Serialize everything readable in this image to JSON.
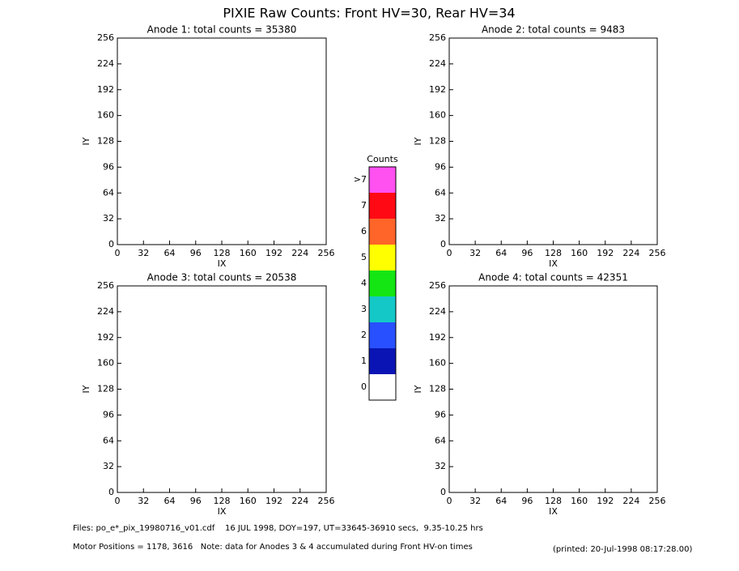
{
  "header": {
    "title": "PIXIE Raw Counts:  Front HV=30, Rear HV=34"
  },
  "chart_data": [
    {
      "type": "heatmap",
      "title": "Anode 1: total counts = 35380",
      "xlabel": "IX",
      "ylabel": "IY",
      "xlim": [
        0,
        256
      ],
      "ylim": [
        0,
        256
      ],
      "xticks": [
        0,
        32,
        64,
        96,
        128,
        160,
        192,
        224,
        256
      ],
      "yticks": [
        0,
        32,
        64,
        96,
        128,
        160,
        192,
        224,
        256
      ]
    },
    {
      "type": "heatmap",
      "title": "Anode 2: total counts = 9483",
      "xlabel": "IX",
      "ylabel": "IY",
      "xlim": [
        0,
        256
      ],
      "ylim": [
        0,
        256
      ],
      "xticks": [
        0,
        32,
        64,
        96,
        128,
        160,
        192,
        224,
        256
      ],
      "yticks": [
        0,
        32,
        64,
        96,
        128,
        160,
        192,
        224,
        256
      ]
    },
    {
      "type": "heatmap",
      "title": "Anode 3: total counts = 20538",
      "xlabel": "IX",
      "ylabel": "IY",
      "xlim": [
        0,
        256
      ],
      "ylim": [
        0,
        256
      ],
      "xticks": [
        0,
        32,
        64,
        96,
        128,
        160,
        192,
        224,
        256
      ],
      "yticks": [
        0,
        32,
        64,
        96,
        128,
        160,
        192,
        224,
        256
      ]
    },
    {
      "type": "heatmap",
      "title": "Anode 4: total counts = 42351",
      "xlabel": "IX",
      "ylabel": "IY",
      "xlim": [
        0,
        256
      ],
      "ylim": [
        0,
        256
      ],
      "xticks": [
        0,
        32,
        64,
        96,
        128,
        160,
        192,
        224,
        256
      ],
      "yticks": [
        0,
        32,
        64,
        96,
        128,
        160,
        192,
        224,
        256
      ]
    }
  ],
  "colorbar": {
    "title": "Counts",
    "levels": [
      {
        "label": "0",
        "color": "#ffffff"
      },
      {
        "label": "1",
        "color": "#0a14b4"
      },
      {
        "label": "2",
        "color": "#2850ff"
      },
      {
        "label": "3",
        "color": "#14c8c8"
      },
      {
        "label": "4",
        "color": "#14e614"
      },
      {
        "label": "5",
        "color": "#ffff00"
      },
      {
        "label": "6",
        "color": "#ff6428"
      },
      {
        "label": "7",
        "color": "#ff0a14"
      },
      {
        "label": ">7",
        "color": "#ff50f0"
      }
    ]
  },
  "footer": {
    "files": "Files: po_e*_pix_19980716_v01.cdf    16 JUL 1998, DOY=197, UT=33645-36910 secs,  9.35-10.25 hrs",
    "motor": "Motor Positions = 1178, 3616   Note: data for Anodes 3 & 4 accumulated during Front HV-on times",
    "printed": "(printed: 20-Jul-1998 08:17:28.00)"
  }
}
